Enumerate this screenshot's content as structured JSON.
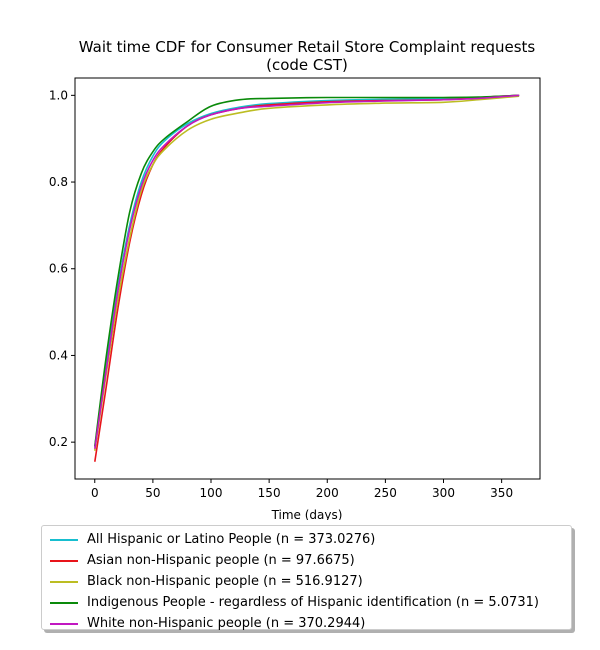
{
  "chart_data": {
    "type": "line",
    "title": "Wait time CDF for Consumer Retail Store Complaint  requests",
    "subtitle": "(code CST)",
    "xlabel": "Time (days)",
    "ylabel": "",
    "xlim": [
      -17,
      383
    ],
    "ylim": [
      0.115,
      1.04
    ],
    "xticks": [
      0,
      50,
      100,
      150,
      200,
      250,
      300,
      350
    ],
    "yticks": [
      0.2,
      0.4,
      0.6,
      0.8,
      1.0
    ],
    "xtick_labels": [
      "0",
      "50",
      "100",
      "150",
      "200",
      "250",
      "300",
      "350"
    ],
    "ytick_labels": [
      "0.2",
      "0.4",
      "0.6",
      "0.8",
      "1.0"
    ],
    "grid": false,
    "legend_position": "below",
    "series": [
      {
        "name": "All Hispanic or Latino People (n = 373.0276)",
        "color": "#17becf",
        "x": [
          0,
          10,
          20,
          30,
          40,
          50,
          60,
          80,
          100,
          125,
          150,
          200,
          250,
          300,
          330,
          365
        ],
        "y": [
          0.19,
          0.38,
          0.56,
          0.7,
          0.8,
          0.86,
          0.895,
          0.935,
          0.958,
          0.973,
          0.981,
          0.988,
          0.991,
          0.993,
          0.995,
          1.0
        ]
      },
      {
        "name": "Asian non-Hispanic people (n = 97.6675)",
        "color": "#e8141a",
        "x": [
          0,
          10,
          20,
          30,
          40,
          50,
          60,
          80,
          100,
          125,
          150,
          200,
          250,
          300,
          330,
          365
        ],
        "y": [
          0.155,
          0.33,
          0.51,
          0.66,
          0.77,
          0.84,
          0.88,
          0.93,
          0.955,
          0.97,
          0.978,
          0.985,
          0.988,
          0.99,
          0.995,
          1.0
        ]
      },
      {
        "name": "Black non-Hispanic people (n = 516.9127)",
        "color": "#bcbd22",
        "x": [
          0,
          10,
          20,
          30,
          40,
          50,
          60,
          80,
          100,
          125,
          150,
          200,
          250,
          300,
          330,
          365
        ],
        "y": [
          0.18,
          0.36,
          0.53,
          0.67,
          0.78,
          0.84,
          0.875,
          0.92,
          0.945,
          0.96,
          0.97,
          0.978,
          0.982,
          0.984,
          0.99,
          0.998
        ]
      },
      {
        "name": "Indigenous People - regardless of Hispanic identification (n = 5.0731)",
        "color": "#0a8a0a",
        "x": [
          0,
          10,
          20,
          30,
          40,
          50,
          60,
          80,
          100,
          125,
          150,
          200,
          250,
          300,
          330,
          365
        ],
        "y": [
          0.19,
          0.4,
          0.58,
          0.73,
          0.82,
          0.87,
          0.9,
          0.94,
          0.975,
          0.99,
          0.993,
          0.995,
          0.995,
          0.995,
          0.996,
          1.0
        ]
      },
      {
        "name": "White non-Hispanic people (n = 370.2944)",
        "color": "#c118c1",
        "x": [
          0,
          10,
          20,
          30,
          40,
          50,
          60,
          80,
          100,
          125,
          150,
          200,
          250,
          300,
          330,
          365
        ],
        "y": [
          0.185,
          0.37,
          0.55,
          0.69,
          0.79,
          0.85,
          0.885,
          0.93,
          0.955,
          0.97,
          0.975,
          0.983,
          0.987,
          0.99,
          0.993,
          1.0
        ]
      }
    ]
  }
}
